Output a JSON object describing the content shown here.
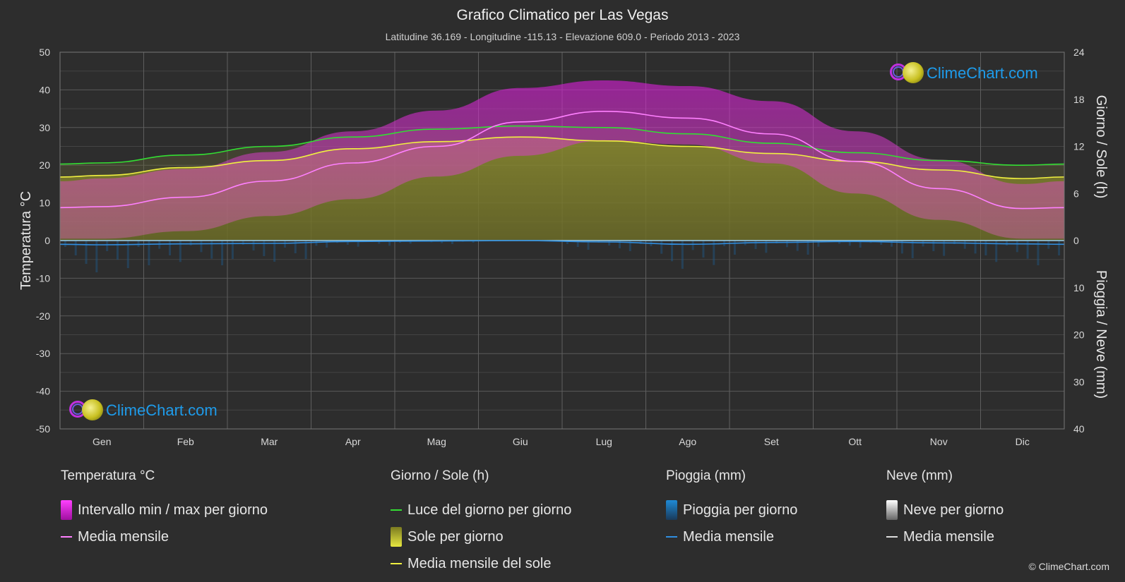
{
  "header": {
    "title": "Grafico Climatico per Las Vegas",
    "subtitle": "Latitudine 36.169 - Longitudine -115.13 - Elevazione 609.0 - Periodo 2013 - 2023"
  },
  "axes": {
    "left_label": "Temperatura °C",
    "right_top_label": "Giorno / Sole (h)",
    "right_bottom_label": "Pioggia / Neve (mm)",
    "left_ticks": [
      "50",
      "40",
      "30",
      "20",
      "10",
      "0",
      "-10",
      "-20",
      "-30",
      "-40",
      "-50"
    ],
    "right_top_ticks": [
      "24",
      "18",
      "12",
      "6",
      "0"
    ],
    "right_bottom_ticks": [
      "10",
      "20",
      "30",
      "40"
    ],
    "months": [
      "Gen",
      "Feb",
      "Mar",
      "Apr",
      "Mag",
      "Giu",
      "Lug",
      "Ago",
      "Set",
      "Ott",
      "Nov",
      "Dic"
    ]
  },
  "logo": {
    "text": "ClimeChart.com"
  },
  "copyright": "© ClimeChart.com",
  "legend": {
    "temperature": {
      "heading": "Temperatura °C",
      "range_label": "Intervallo min / max per giorno",
      "mean_label": "Media mensile"
    },
    "sun": {
      "heading": "Giorno / Sole (h)",
      "daylight_label": "Luce del giorno per giorno",
      "sun_label": "Sole per giorno",
      "sun_mean_label": "Media mensile del sole"
    },
    "rain": {
      "heading": "Pioggia (mm)",
      "rain_label": "Pioggia per giorno",
      "mean_label": "Media mensile"
    },
    "snow": {
      "heading": "Neve (mm)",
      "snow_label": "Neve per giorno",
      "mean_label": "Media mensile"
    }
  },
  "colors": {
    "background": "#2d2d2d",
    "temp_range": "#d21ed2",
    "temp_mean": "#ff80ff",
    "daylight": "#33dd33",
    "sunshine_fill": "#9a9a22",
    "sun_mean": "#f0f040",
    "rain": "#1e8ad6",
    "rain_mean": "#2f8ee0",
    "snow": "#dddddd",
    "logo_text": "#1e9bea"
  },
  "chart_data": {
    "type": "area",
    "x": [
      "Gen",
      "Feb",
      "Mar",
      "Apr",
      "Mag",
      "Giu",
      "Lug",
      "Ago",
      "Set",
      "Ott",
      "Nov",
      "Dic"
    ],
    "temp_ylim": [
      -50,
      50
    ],
    "sun_ylim": [
      0,
      24
    ],
    "rain_ylim": [
      0,
      40
    ],
    "grid": true,
    "series": [
      {
        "name": "Media mensile",
        "axis": "temperature",
        "values": [
          9.0,
          11.5,
          15.8,
          20.6,
          25.0,
          31.5,
          34.3,
          32.5,
          28.3,
          21.0,
          13.8,
          8.5
        ]
      },
      {
        "name": "Intervallo min / max per giorno (min)",
        "axis": "temperature",
        "values": [
          0.5,
          2.5,
          6.5,
          11.0,
          17.0,
          22.5,
          26.5,
          25.5,
          20.5,
          12.5,
          5.5,
          0.5
        ]
      },
      {
        "name": "Intervallo min / max per giorno (max)",
        "axis": "temperature",
        "values": [
          16.5,
          19.0,
          23.5,
          29.0,
          34.5,
          40.5,
          42.5,
          41.0,
          37.0,
          29.0,
          21.5,
          15.0
        ]
      },
      {
        "name": "Luce del giorno per giorno",
        "axis": "sun",
        "values": [
          9.9,
          10.9,
          12.0,
          13.2,
          14.2,
          14.6,
          14.4,
          13.6,
          12.4,
          11.2,
          10.2,
          9.6
        ]
      },
      {
        "name": "Media mensile del sole",
        "axis": "sun",
        "values": [
          8.3,
          9.3,
          10.2,
          11.7,
          12.6,
          13.2,
          12.7,
          12.0,
          11.1,
          10.1,
          9.0,
          7.9
        ]
      },
      {
        "name": "Pioggia - Media mensile",
        "axis": "rain",
        "values": [
          0.9,
          0.7,
          0.6,
          0.2,
          0.1,
          0.0,
          0.3,
          0.8,
          0.4,
          0.2,
          0.5,
          0.7
        ]
      },
      {
        "name": "Neve - Media mensile",
        "axis": "rain",
        "values": [
          0,
          0,
          0,
          0,
          0,
          0,
          0,
          0,
          0,
          0,
          0,
          0
        ]
      }
    ]
  }
}
